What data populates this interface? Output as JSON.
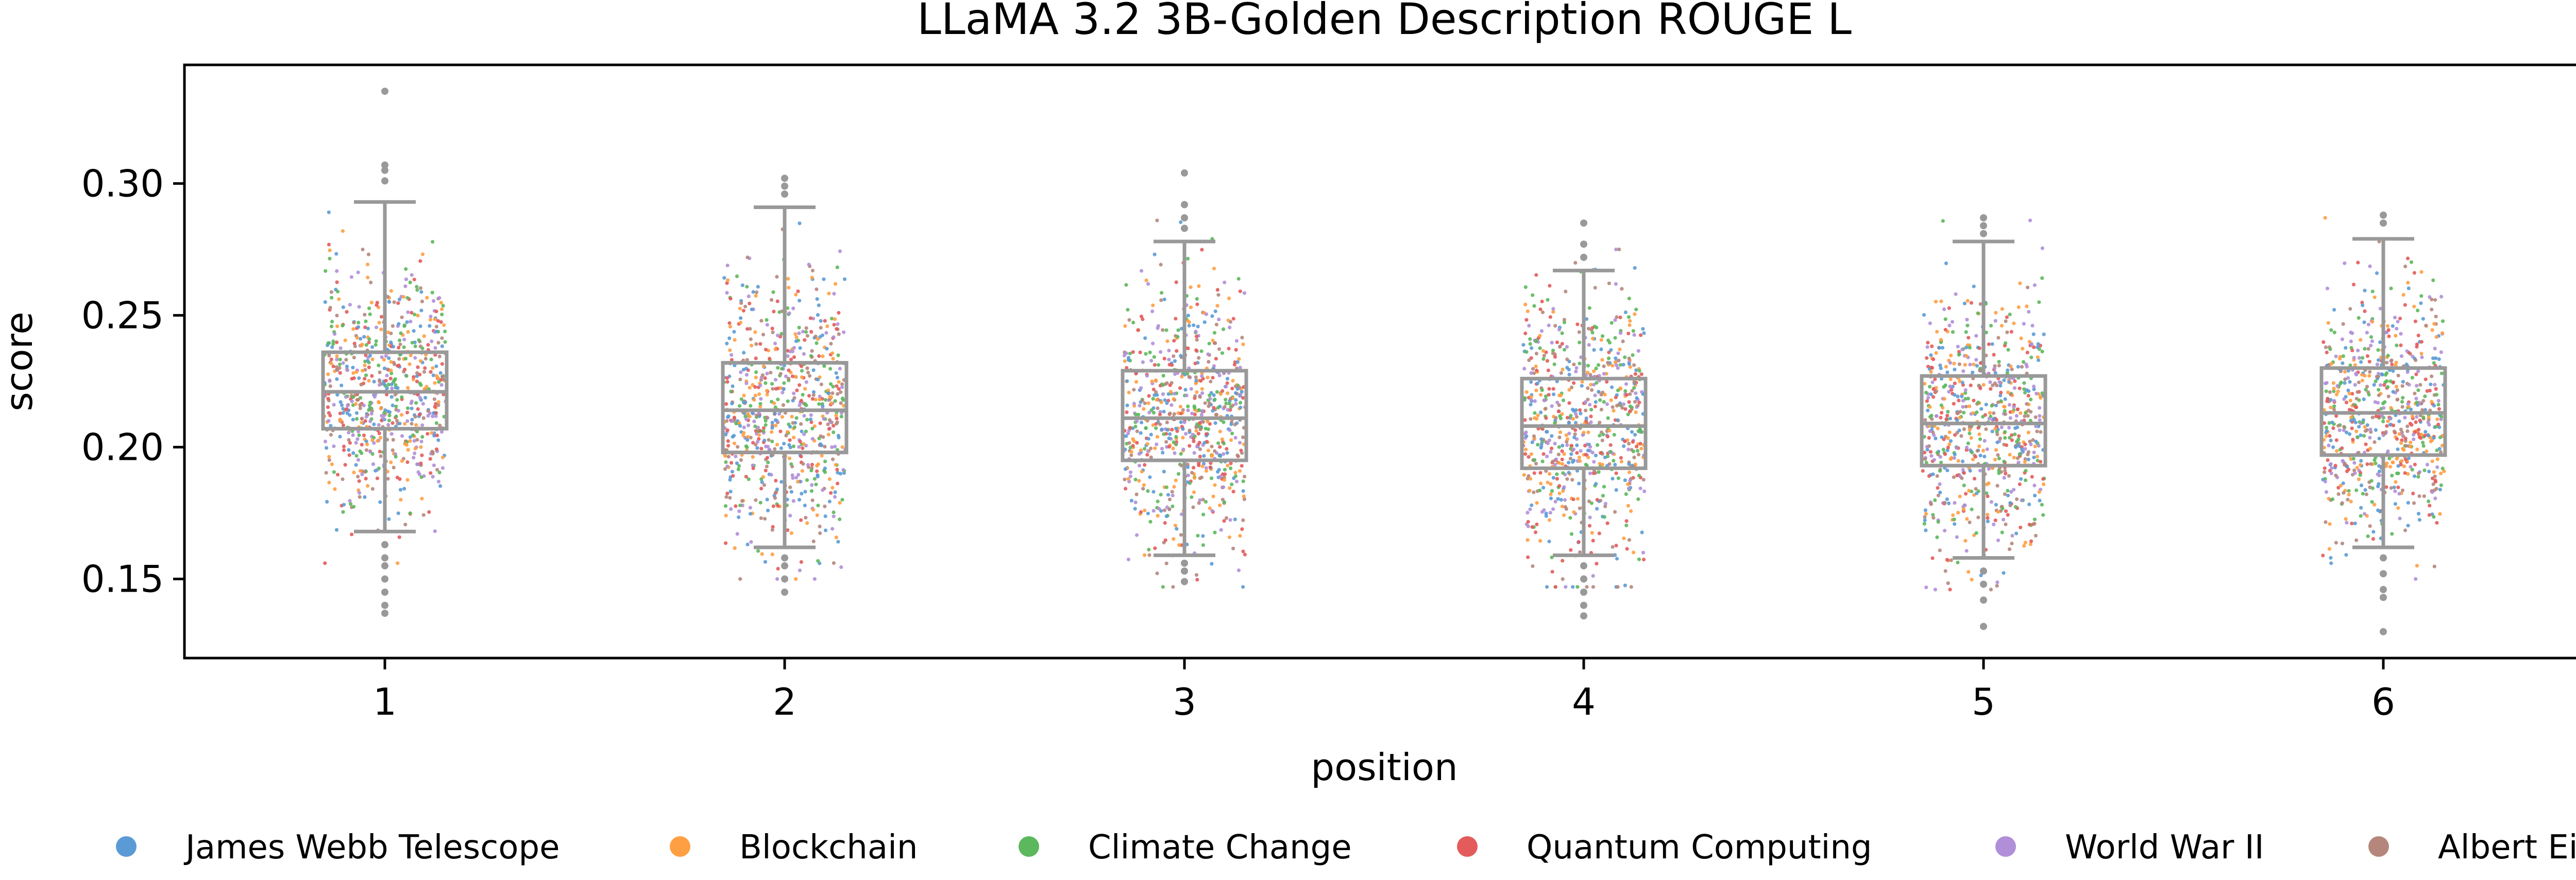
{
  "chart_data": {
    "type": "box+strip",
    "title": "LLaMA 3.2 3B-Golden Description ROUGE L",
    "xlabel": "position",
    "ylabel": "score",
    "categories": [
      "1",
      "2",
      "3",
      "4",
      "5",
      "6"
    ],
    "ylim": [
      0.12,
      0.345
    ],
    "yticks": [
      0.15,
      0.2,
      0.25,
      0.3
    ],
    "ytick_labels": [
      "0.15",
      "0.20",
      "0.25",
      "0.30"
    ],
    "grid": false,
    "box_color": "#999999",
    "boxes": [
      {
        "position": "1",
        "q1": 0.207,
        "median": 0.221,
        "q3": 0.236,
        "whisker_low": 0.168,
        "whisker_high": 0.293,
        "outliers": [
          0.335,
          0.307,
          0.305,
          0.301,
          0.163,
          0.158,
          0.155,
          0.15,
          0.145,
          0.14,
          0.137
        ]
      },
      {
        "position": "2",
        "q1": 0.198,
        "median": 0.214,
        "q3": 0.232,
        "whisker_low": 0.162,
        "whisker_high": 0.291,
        "outliers": [
          0.302,
          0.299,
          0.296,
          0.158,
          0.155,
          0.15,
          0.145
        ]
      },
      {
        "position": "3",
        "q1": 0.195,
        "median": 0.211,
        "q3": 0.229,
        "whisker_low": 0.159,
        "whisker_high": 0.278,
        "outliers": [
          0.304,
          0.292,
          0.287,
          0.283,
          0.156,
          0.153,
          0.149
        ]
      },
      {
        "position": "4",
        "q1": 0.192,
        "median": 0.208,
        "q3": 0.226,
        "whisker_low": 0.159,
        "whisker_high": 0.267,
        "outliers": [
          0.285,
          0.277,
          0.272,
          0.155,
          0.15,
          0.145,
          0.14,
          0.136
        ]
      },
      {
        "position": "5",
        "q1": 0.193,
        "median": 0.209,
        "q3": 0.227,
        "whisker_low": 0.158,
        "whisker_high": 0.278,
        "outliers": [
          0.287,
          0.284,
          0.281,
          0.153,
          0.148,
          0.142,
          0.132
        ]
      },
      {
        "position": "6",
        "q1": 0.197,
        "median": 0.213,
        "q3": 0.23,
        "whisker_low": 0.162,
        "whisker_high": 0.279,
        "outliers": [
          0.288,
          0.285,
          0.158,
          0.152,
          0.146,
          0.143,
          0.13
        ]
      }
    ],
    "series": [
      {
        "name": "James Webb Telescope",
        "color": "#5b9bd5"
      },
      {
        "name": "Blockchain",
        "color": "#ff9f43"
      },
      {
        "name": "Climate Change",
        "color": "#5cb85c"
      },
      {
        "name": "Quantum Computing",
        "color": "#e35b5b"
      },
      {
        "name": "World War II",
        "color": "#b08fd8"
      },
      {
        "name": "Albert Einstein",
        "color": "#b5877c"
      }
    ],
    "legend_position": "bottom"
  }
}
